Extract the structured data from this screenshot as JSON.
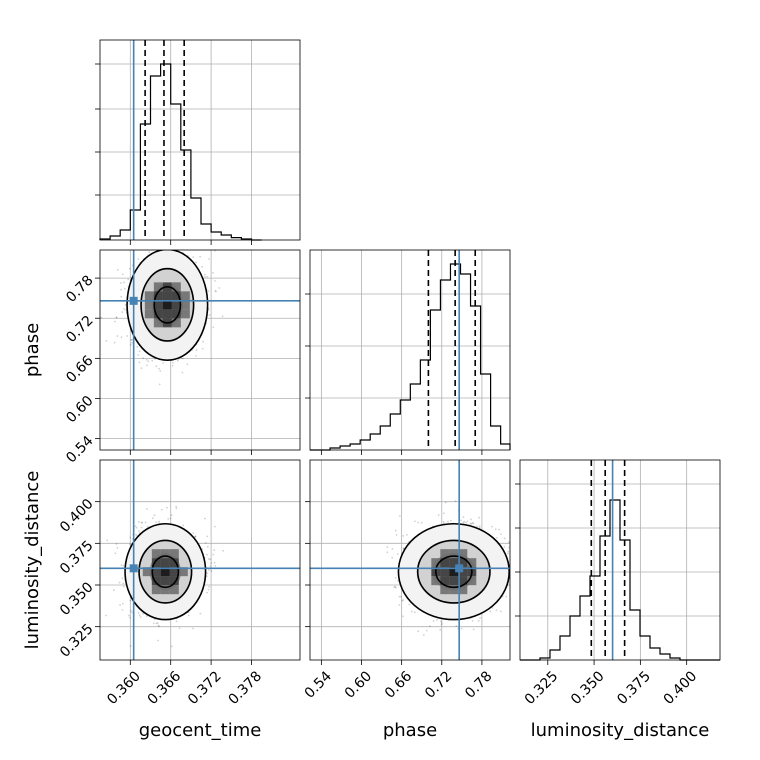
{
  "chart_data": {
    "type": "corner",
    "parameters": [
      "geocent_time",
      "phase",
      "luminosity_distance"
    ],
    "truth": {
      "geocent_time": 0.3605,
      "phase": 0.746,
      "luminosity_distance": 0.36,
      "color": "#4682b4"
    },
    "histograms": [
      {
        "parameter": "geocent_time",
        "range": [
          0.3555,
          0.3852
        ],
        "ylim": [
          0,
          1
        ],
        "bin_edges": [
          0.3555,
          0.357,
          0.3585,
          0.36,
          0.3615,
          0.363,
          0.3645,
          0.366,
          0.3675,
          0.369,
          0.3705,
          0.372,
          0.3735,
          0.375,
          0.3765,
          0.378,
          0.3795
        ],
        "counts": [
          0.005,
          0.02,
          0.05,
          0.15,
          0.58,
          0.82,
          0.88,
          0.68,
          0.45,
          0.21,
          0.08,
          0.04,
          0.025,
          0.012,
          0.005,
          0.0
        ],
        "quantiles": [
          0.3622,
          0.365,
          0.368
        ],
        "y_ticks": [
          0.225,
          0.44,
          0.655,
          0.88
        ],
        "x_ticks": [
          0.36,
          0.366,
          0.372,
          0.378
        ]
      },
      {
        "parameter": "phase",
        "range": [
          0.523,
          0.822
        ],
        "ylim": [
          0,
          1
        ],
        "bin_edges": [
          0.523,
          0.538,
          0.553,
          0.568,
          0.583,
          0.598,
          0.613,
          0.628,
          0.643,
          0.658,
          0.673,
          0.688,
          0.703,
          0.718,
          0.733,
          0.748,
          0.763,
          0.778,
          0.793,
          0.808,
          0.822
        ],
        "counts": [
          0.0,
          0.0,
          0.01,
          0.02,
          0.03,
          0.05,
          0.08,
          0.12,
          0.18,
          0.25,
          0.33,
          0.45,
          0.7,
          0.85,
          0.93,
          0.88,
          0.72,
          0.38,
          0.12,
          0.03
        ],
        "quantiles": [
          0.7,
          0.74,
          0.77
        ],
        "y_ticks": [
          0.26,
          0.52,
          0.78
        ],
        "x_ticks": [
          0.54,
          0.6,
          0.66,
          0.72,
          0.78
        ]
      },
      {
        "parameter": "luminosity_distance",
        "range": [
          0.31,
          0.418
        ],
        "ylim": [
          0,
          1
        ],
        "bin_edges": [
          0.31,
          0.3154,
          0.3208,
          0.3262,
          0.3316,
          0.337,
          0.3424,
          0.3478,
          0.3532,
          0.3586,
          0.364,
          0.3694,
          0.3748,
          0.3802,
          0.3856,
          0.391,
          0.3964,
          0.4018,
          0.4072,
          0.4126,
          0.418
        ],
        "counts": [
          0.0,
          0.0,
          0.01,
          0.05,
          0.12,
          0.22,
          0.32,
          0.42,
          0.62,
          0.8,
          0.6,
          0.25,
          0.12,
          0.06,
          0.03,
          0.01,
          0.0,
          0.0,
          0.0,
          0.0
        ],
        "quantiles": [
          0.3485,
          0.356,
          0.3665
        ],
        "y_ticks": [
          0.22,
          0.44,
          0.66,
          0.88
        ],
        "x_ticks": [
          0.325,
          0.35,
          0.375,
          0.4
        ]
      }
    ],
    "scatter_panels": [
      {
        "x": "geocent_time",
        "y": "phase",
        "xlim": [
          0.3555,
          0.3852
        ],
        "ylim": [
          0.523,
          0.822
        ],
        "center": [
          0.3655,
          0.74
        ],
        "spread": [
          0.0026,
          0.036
        ],
        "correlation": -0.1,
        "y_ticks": [
          0.54,
          0.6,
          0.66,
          0.72,
          0.78
        ],
        "x_ticks": [
          0.36,
          0.366,
          0.372,
          0.378
        ]
      },
      {
        "x": "geocent_time",
        "y": "luminosity_distance",
        "xlim": [
          0.3555,
          0.3852
        ],
        "ylim": [
          0.305,
          0.425
        ],
        "center": [
          0.3652,
          0.358
        ],
        "spread": [
          0.0026,
          0.0125
        ],
        "correlation": 0.0,
        "y_ticks": [
          0.325,
          0.35,
          0.375,
          0.4
        ],
        "x_ticks": [
          0.36,
          0.366,
          0.372,
          0.378
        ]
      },
      {
        "x": "phase",
        "y": "luminosity_distance",
        "xlim": [
          0.523,
          0.822
        ],
        "ylim": [
          0.305,
          0.425
        ],
        "center": [
          0.738,
          0.358
        ],
        "spread": [
          0.036,
          0.0125
        ],
        "correlation": 0.0,
        "y_ticks": [
          0.325,
          0.35,
          0.375,
          0.4
        ],
        "x_ticks": [
          0.54,
          0.6,
          0.66,
          0.72,
          0.78
        ]
      }
    ],
    "tick_labels": {
      "geocent_time": [
        "0.360",
        "0.366",
        "0.372",
        "0.378"
      ],
      "phase": [
        "0.54",
        "0.60",
        "0.66",
        "0.72",
        "0.78"
      ],
      "luminosity_distance": [
        "0.325",
        "0.350",
        "0.375",
        "0.400"
      ]
    },
    "axis_labels": {
      "geocent_time": "geocent_time",
      "phase": "phase",
      "luminosity_distance": "luminosity_distance"
    },
    "grid": true
  }
}
